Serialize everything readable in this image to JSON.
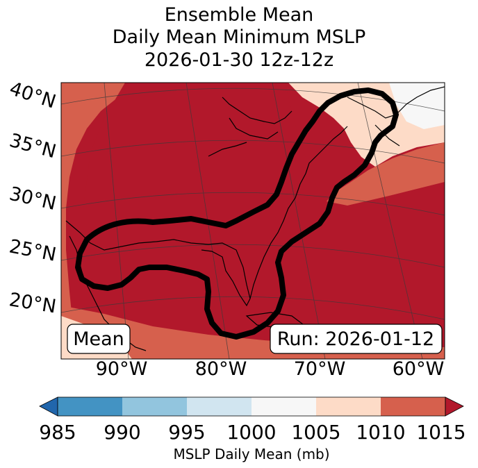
{
  "title": {
    "line1": "Ensemble Mean",
    "line2": "Daily Mean Minimum MSLP",
    "line3": "2026-01-30 12z-12z"
  },
  "map": {
    "lat_labels": [
      "40°N",
      "35°N",
      "30°N",
      "25°N",
      "20°N"
    ],
    "lon_labels": [
      "90°W",
      "80°W",
      "70°W",
      "60°W"
    ],
    "mean_box": "Mean",
    "run_box": "Run: 2026-01-12",
    "contour_color": "#000000"
  },
  "colorbar": {
    "label": "MSLP Daily Mean (mb)",
    "ticks": [
      "985",
      "990",
      "995",
      "1000",
      "1005",
      "1010",
      "1015"
    ],
    "colors": [
      "#2166ac",
      "#4393c3",
      "#92c5de",
      "#d1e5f0",
      "#f7f7f7",
      "#fddbc7",
      "#d6604d",
      "#b2182b"
    ],
    "extend": "both"
  },
  "palette": {
    "fill_1015": "#b2182b",
    "fill_1010": "#d6604d",
    "fill_1005": "#fddbc7",
    "fill_1000": "#f7f7f7"
  }
}
